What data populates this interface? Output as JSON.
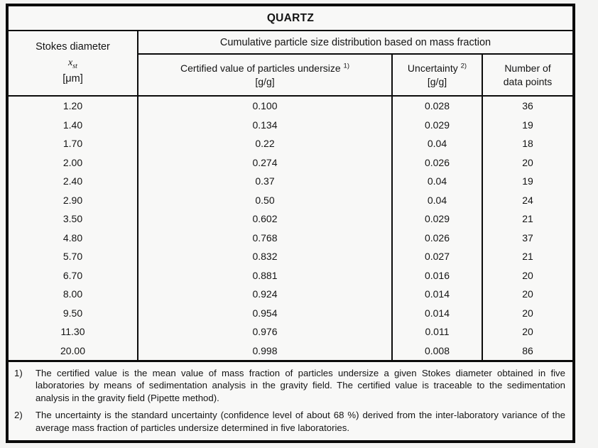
{
  "title": "QUARTZ",
  "header": {
    "stokes": {
      "line1": "Stokes diameter",
      "symbol": "x",
      "symbol_sub": "st",
      "unit": "[μm]"
    },
    "group_label": "Cumulative particle size distribution based on mass fraction",
    "col_certified": {
      "label": "Certified value of particles undersize",
      "sup": "1)",
      "unit": "[g/g]"
    },
    "col_uncertainty": {
      "label": "Uncertainty",
      "sup": "2)",
      "unit": "[g/g]"
    },
    "col_points": {
      "line1": "Number of",
      "line2": "data points"
    }
  },
  "rows": [
    [
      "1.20",
      "0.100",
      "0.028",
      "36"
    ],
    [
      "1.40",
      "0.134",
      "0.029",
      "19"
    ],
    [
      "1.70",
      "0.22",
      "0.04",
      "18"
    ],
    [
      "2.00",
      "0.274",
      "0.026",
      "20"
    ],
    [
      "2.40",
      "0.37",
      "0.04",
      "19"
    ],
    [
      "2.90",
      "0.50",
      "0.04",
      "24"
    ],
    [
      "3.50",
      "0.602",
      "0.029",
      "21"
    ],
    [
      "4.80",
      "0.768",
      "0.026",
      "37"
    ],
    [
      "5.70",
      "0.832",
      "0.027",
      "21"
    ],
    [
      "6.70",
      "0.881",
      "0.016",
      "20"
    ],
    [
      "8.00",
      "0.924",
      "0.014",
      "20"
    ],
    [
      "9.50",
      "0.954",
      "0.014",
      "20"
    ],
    [
      "11.30",
      "0.976",
      "0.011",
      "20"
    ],
    [
      "20.00",
      "0.998",
      "0.008",
      "86"
    ]
  ],
  "footnotes": [
    {
      "marker": "1)",
      "text": "The certified value is the mean value of mass fraction of particles undersize a given Stokes diameter obtained in five laboratories by means of sedimentation analysis in the gravity field. The certified value is traceable to the sedimentation analysis in the gravity field (Pipette method)."
    },
    {
      "marker": "2)",
      "text": "The uncertainty is the standard uncertainty (confidence level of about 68 %) derived from the inter-laboratory variance of the average mass fraction of particles undersize determined in five laboratories."
    }
  ],
  "chart_data": {
    "type": "table",
    "title": "QUARTZ",
    "columns": [
      "Stokes diameter x_st [μm]",
      "Certified value of particles undersize [g/g]",
      "Uncertainty [g/g]",
      "Number of data points"
    ],
    "rows": [
      [
        1.2,
        0.1,
        0.028,
        36
      ],
      [
        1.4,
        0.134,
        0.029,
        19
      ],
      [
        1.7,
        0.22,
        0.04,
        18
      ],
      [
        2.0,
        0.274,
        0.026,
        20
      ],
      [
        2.4,
        0.37,
        0.04,
        19
      ],
      [
        2.9,
        0.5,
        0.04,
        24
      ],
      [
        3.5,
        0.602,
        0.029,
        21
      ],
      [
        4.8,
        0.768,
        0.026,
        37
      ],
      [
        5.7,
        0.832,
        0.027,
        21
      ],
      [
        6.7,
        0.881,
        0.016,
        20
      ],
      [
        8.0,
        0.924,
        0.014,
        20
      ],
      [
        9.5,
        0.954,
        0.014,
        20
      ],
      [
        11.3,
        0.976,
        0.011,
        20
      ],
      [
        20.0,
        0.998,
        0.008,
        86
      ]
    ]
  }
}
